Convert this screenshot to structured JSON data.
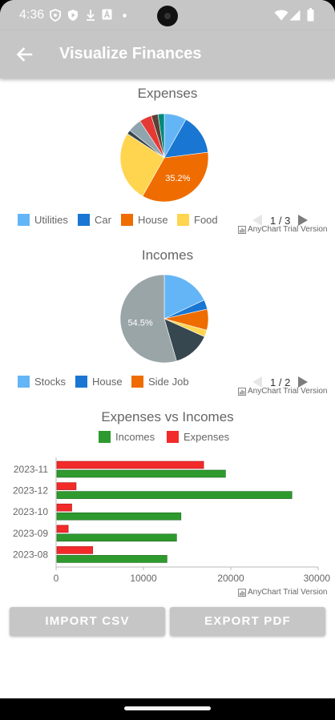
{
  "status_bar": {
    "time": "4:36"
  },
  "app_bar": {
    "title": "Visualize Finances"
  },
  "colors": {
    "utilities": "#64b5f6",
    "car": "#1976d2",
    "house": "#ef6c00",
    "food": "#ffd54f",
    "incomes": "#2e9a2e",
    "expenses": "#f22a2a",
    "bar_chrome": "#c6c6c6"
  },
  "expenses_chart": {
    "title": "Expenses",
    "legend": [
      {
        "label": "Utilities",
        "color": "#64b5f6"
      },
      {
        "label": "Car",
        "color": "#1976d2"
      },
      {
        "label": "House",
        "color": "#ef6c00"
      },
      {
        "label": "Food",
        "color": "#ffd54f"
      }
    ],
    "pager": "1 / 3",
    "trial": "AnyChart Trial Version"
  },
  "incomes_chart": {
    "title": "Incomes",
    "legend": [
      {
        "label": "Stocks",
        "color": "#64b5f6"
      },
      {
        "label": "House",
        "color": "#1976d2"
      },
      {
        "label": "Side Job",
        "color": "#ef6c00"
      }
    ],
    "pager": "1 / 2",
    "trial": "AnyChart Trial Version"
  },
  "bar_chart": {
    "title": "Expenses vs Incomes",
    "legend": [
      {
        "label": "Incomes",
        "color": "#2e9a2e"
      },
      {
        "label": "Expenses",
        "color": "#f22a2a"
      }
    ],
    "trial": "AnyChart Trial Version"
  },
  "buttons": {
    "import": "IMPORT CSV",
    "export": "EXPORT PDF"
  },
  "chart_data": [
    {
      "type": "pie",
      "title": "Expenses",
      "slices": [
        {
          "name": "Utilities",
          "value": 8.2,
          "color": "#64b5f6"
        },
        {
          "name": "Car",
          "value": 14.8,
          "color": "#1976d2"
        },
        {
          "name": "House",
          "value": 35.2,
          "color": "#ef6c00",
          "label": "35.2%"
        },
        {
          "name": "Food",
          "value": 26.0,
          "color": "#ffd54f"
        },
        {
          "value": 1.5,
          "color": "#37474f"
        },
        {
          "value": 5.0,
          "color": "#90a4ae"
        },
        {
          "value": 4.5,
          "color": "#e53935"
        },
        {
          "value": 2.5,
          "color": "#5d4037"
        },
        {
          "value": 2.3,
          "color": "#00897b"
        }
      ]
    },
    {
      "type": "pie",
      "title": "Incomes",
      "slices": [
        {
          "name": "Stocks",
          "value": 18.0,
          "color": "#64b5f6"
        },
        {
          "name": "House",
          "value": 3.5,
          "color": "#1976d2"
        },
        {
          "name": "Side Job",
          "value": 7.7,
          "color": "#ef6c00"
        },
        {
          "value": 2.5,
          "color": "#ffd54f"
        },
        {
          "value": 13.8,
          "color": "#37474f"
        },
        {
          "value": 54.5,
          "color": "#9aa5a8",
          "label": "54.5%"
        }
      ]
    },
    {
      "type": "bar",
      "title": "Expenses vs Incomes",
      "categories": [
        "2023-11",
        "2023-12",
        "2023-10",
        "2023-09",
        "2023-08"
      ],
      "series": [
        {
          "name": "Expenses",
          "values": [
            16800,
            2200,
            1700,
            1300,
            4100
          ],
          "color": "#f22a2a"
        },
        {
          "name": "Incomes",
          "values": [
            19300,
            26900,
            14200,
            13700,
            12600
          ],
          "color": "#2e9a2e"
        }
      ],
      "xlim": [
        0,
        30000
      ],
      "xticks": [
        "0",
        "10000",
        "20000",
        "30000"
      ]
    }
  ]
}
